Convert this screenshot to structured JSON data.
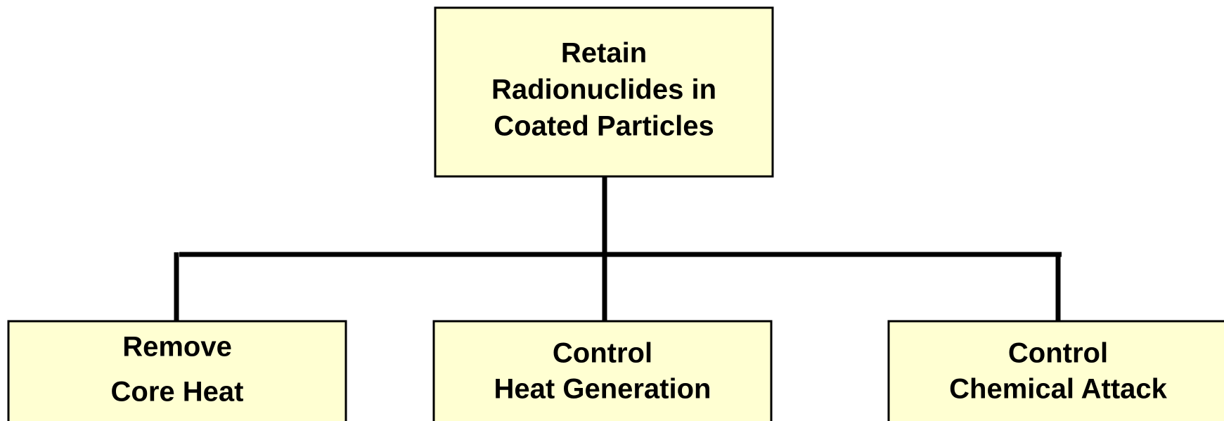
{
  "nodes": [
    {
      "lines": [
        "Retain",
        "Radionuclides in",
        "Coated Particles"
      ]
    },
    {
      "lines": [
        "Remove",
        "Core Heat"
      ]
    },
    {
      "lines": [
        "Control",
        "Heat Generation"
      ]
    },
    {
      "lines": [
        "Control",
        "Chemical Attack"
      ]
    }
  ]
}
